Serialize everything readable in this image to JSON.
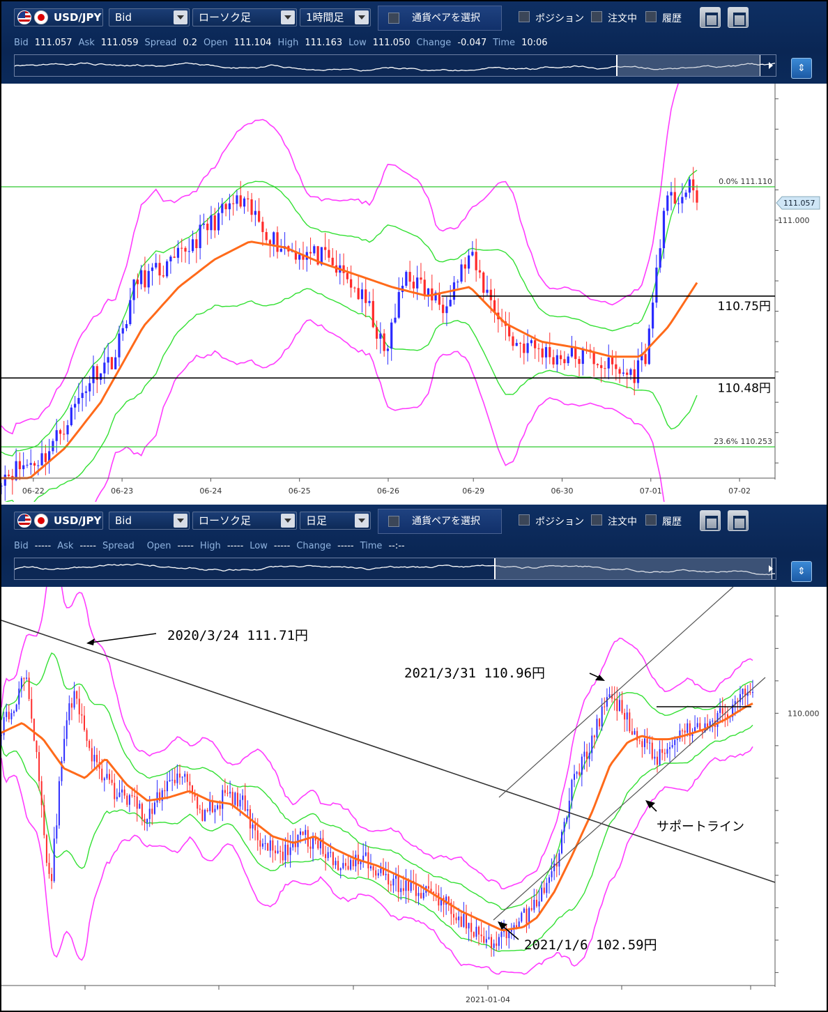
{
  "panels": [
    {
      "toolbar": {
        "symbol": "USD/JPY",
        "price_type": "Bid",
        "chart_style": "ローソク足",
        "timeframe": "1時間足",
        "pair_select": "通貨ペアを選択",
        "checkboxes": [
          "ポジション",
          "注文中",
          "履歴"
        ]
      },
      "quote": [
        {
          "label": "Bid",
          "value": "111.057"
        },
        {
          "label": "Ask",
          "value": "111.059"
        },
        {
          "label": "Spread",
          "value": "0.2"
        },
        {
          "label": "Open",
          "value": "111.104"
        },
        {
          "label": "High",
          "value": "111.163"
        },
        {
          "label": "Low",
          "value": "111.050"
        },
        {
          "label": "Change",
          "value": "-0.047"
        },
        {
          "label": "Time",
          "value": "10:06"
        }
      ],
      "navigator_selection": [
        0.79,
        0.98
      ],
      "nav_button_icon": "zoom-toggle-icon"
    },
    {
      "toolbar": {
        "symbol": "USD/JPY",
        "price_type": "Bid",
        "chart_style": "ローソク足",
        "timeframe": "日足",
        "pair_select": "通貨ペアを選択",
        "checkboxes": [
          "ポジション",
          "注文中",
          "履歴"
        ]
      },
      "quote": [
        {
          "label": "Bid",
          "value": "-----"
        },
        {
          "label": "Ask",
          "value": "-----"
        },
        {
          "label": "Spread",
          "value": ""
        },
        {
          "label": "Open",
          "value": "-----"
        },
        {
          "label": "High",
          "value": "-----"
        },
        {
          "label": "Low",
          "value": "-----"
        },
        {
          "label": "Change",
          "value": "-----"
        },
        {
          "label": "Time",
          "value": "--:--"
        }
      ],
      "navigator_selection": [
        0.63,
        0.995
      ],
      "nav_button_icon": "zoom-toggle-icon"
    }
  ],
  "chart_data": [
    {
      "type": "candlestick",
      "timeframe": "1時間足",
      "x_tick_labels": [
        "06-22",
        "06-23",
        "06-24",
        "06-25",
        "06-26",
        "06-29",
        "06-30",
        "07-01",
        "07-02"
      ],
      "y_tick_labels": [
        "111.000"
      ],
      "ylim": [
        110.15,
        111.45
      ],
      "current_price": "111.057",
      "fib_levels": [
        {
          "label": "0.0%",
          "value": "111.110"
        },
        {
          "label": "23.6%",
          "value": "110.253"
        }
      ],
      "horizontal_lines": [
        {
          "label": "110.75円",
          "value": 110.75
        },
        {
          "label": "110.48円",
          "value": 110.48
        }
      ],
      "indicators": [
        "Moving average (orange)",
        "Bollinger ±1σ (green)",
        "Bollinger ±2σ (magenta)"
      ],
      "close_path": [
        [
          0,
          110.16
        ],
        [
          0.6,
          110.22
        ],
        [
          0.9,
          110.33
        ],
        [
          1.3,
          110.5
        ],
        [
          1.6,
          110.55
        ],
        [
          1.9,
          110.8
        ],
        [
          2.1,
          110.82
        ],
        [
          2.4,
          110.85
        ],
        [
          2.7,
          110.93
        ],
        [
          3.0,
          111.0
        ],
        [
          3.3,
          111.06
        ],
        [
          3.5,
          111.03
        ],
        [
          3.9,
          110.92
        ],
        [
          4.1,
          110.9
        ],
        [
          4.5,
          110.88
        ],
        [
          4.9,
          110.8
        ],
        [
          5.2,
          110.7
        ],
        [
          5.4,
          110.55
        ],
        [
          5.7,
          110.83
        ],
        [
          5.9,
          110.78
        ],
        [
          6.2,
          110.72
        ],
        [
          6.4,
          110.8
        ],
        [
          6.6,
          110.88
        ],
        [
          6.8,
          110.78
        ],
        [
          7.2,
          110.6
        ],
        [
          7.5,
          110.58
        ],
        [
          7.8,
          110.55
        ],
        [
          8.3,
          110.55
        ],
        [
          8.7,
          110.5
        ],
        [
          8.9,
          110.49
        ],
        [
          9.1,
          110.57
        ],
        [
          9.3,
          110.98
        ],
        [
          9.4,
          111.06
        ],
        [
          9.7,
          111.1
        ],
        [
          9.8,
          111.06
        ]
      ],
      "sma_path": [
        [
          0.4,
          110.15
        ],
        [
          0.9,
          110.25
        ],
        [
          1.4,
          110.4
        ],
        [
          2.0,
          110.65
        ],
        [
          2.5,
          110.78
        ],
        [
          3.0,
          110.87
        ],
        [
          3.5,
          110.93
        ],
        [
          4.0,
          110.91
        ],
        [
          4.5,
          110.86
        ],
        [
          5.0,
          110.82
        ],
        [
          5.5,
          110.78
        ],
        [
          6.0,
          110.75
        ],
        [
          6.6,
          110.78
        ],
        [
          7.1,
          110.66
        ],
        [
          7.6,
          110.6
        ],
        [
          8.1,
          110.58
        ],
        [
          8.6,
          110.55
        ],
        [
          9.0,
          110.55
        ],
        [
          9.4,
          110.65
        ],
        [
          9.9,
          110.83
        ]
      ]
    },
    {
      "type": "candlestick",
      "timeframe": "日足",
      "x_tick_labels": [
        "2021-01-04"
      ],
      "y_tick_labels": [
        "110.000"
      ],
      "ylim": [
        101.6,
        113.9
      ],
      "annotations": [
        {
          "text": "2020/3/24  111.71円",
          "date": "2020-03-24",
          "value": 111.71
        },
        {
          "text": "2021/3/31  110.96円",
          "date": "2021-03-31",
          "value": 110.96
        },
        {
          "text": "2021/1/6  102.59円",
          "date": "2021-01-06",
          "value": 102.59
        },
        {
          "text": "サポートライン"
        }
      ],
      "indicators": [
        "Moving average (orange)",
        "Bollinger ±1σ (green)",
        "Bollinger ±2σ (magenta)"
      ],
      "close_path": [
        [
          0,
          109.6
        ],
        [
          0.2,
          110.2
        ],
        [
          0.35,
          111.5
        ],
        [
          0.5,
          108.9
        ],
        [
          0.7,
          104.5
        ],
        [
          0.9,
          109.3
        ],
        [
          1.05,
          110.8
        ],
        [
          1.3,
          108.6
        ],
        [
          1.6,
          107.6
        ],
        [
          1.9,
          107.2
        ],
        [
          2.1,
          106.8
        ],
        [
          2.35,
          107.7
        ],
        [
          2.6,
          108.3
        ],
        [
          2.9,
          106.9
        ],
        [
          3.2,
          107.4
        ],
        [
          3.45,
          107.3
        ],
        [
          3.7,
          106.1
        ],
        [
          4.0,
          105.6
        ],
        [
          4.3,
          106.2
        ],
        [
          4.55,
          106.0
        ],
        [
          4.8,
          105.3
        ],
        [
          5.2,
          105.6
        ],
        [
          5.5,
          104.9
        ],
        [
          5.9,
          104.6
        ],
        [
          6.3,
          104.3
        ],
        [
          6.6,
          103.7
        ],
        [
          6.85,
          103.1
        ],
        [
          7.05,
          102.8
        ],
        [
          7.3,
          103.2
        ],
        [
          7.6,
          103.9
        ],
        [
          7.8,
          104.6
        ],
        [
          8.0,
          105.5
        ],
        [
          8.2,
          107.8
        ],
        [
          8.45,
          109.0
        ],
        [
          8.75,
          110.6
        ],
        [
          8.9,
          110.1
        ],
        [
          9.2,
          109.2
        ],
        [
          9.4,
          108.6
        ],
        [
          9.6,
          109.1
        ],
        [
          9.8,
          109.5
        ],
        [
          10.1,
          109.6
        ],
        [
          10.4,
          110.0
        ],
        [
          10.65,
          110.5
        ],
        [
          10.8,
          110.9
        ]
      ],
      "sma_path": [
        [
          0,
          109.4
        ],
        [
          0.3,
          109.7
        ],
        [
          0.6,
          109.2
        ],
        [
          0.9,
          108.3
        ],
        [
          1.2,
          108.0
        ],
        [
          1.5,
          108.6
        ],
        [
          1.8,
          107.8
        ],
        [
          2.1,
          107.3
        ],
        [
          2.4,
          107.4
        ],
        [
          2.7,
          107.6
        ],
        [
          3.0,
          107.3
        ],
        [
          3.3,
          107.2
        ],
        [
          3.6,
          106.7
        ],
        [
          3.9,
          106.2
        ],
        [
          4.2,
          106.0
        ],
        [
          4.5,
          106.2
        ],
        [
          4.8,
          105.8
        ],
        [
          5.1,
          105.5
        ],
        [
          5.4,
          105.3
        ],
        [
          5.7,
          105.0
        ],
        [
          6.0,
          104.7
        ],
        [
          6.3,
          104.3
        ],
        [
          6.6,
          103.9
        ],
        [
          6.9,
          103.6
        ],
        [
          7.2,
          103.3
        ],
        [
          7.5,
          103.4
        ],
        [
          7.7,
          103.7
        ],
        [
          7.95,
          104.5
        ],
        [
          8.2,
          105.6
        ],
        [
          8.5,
          107.0
        ],
        [
          8.75,
          108.4
        ],
        [
          9.0,
          109.1
        ],
        [
          9.2,
          109.3
        ],
        [
          9.4,
          109.2
        ],
        [
          9.6,
          109.2
        ],
        [
          9.8,
          109.3
        ],
        [
          10.1,
          109.5
        ],
        [
          10.4,
          109.8
        ],
        [
          10.7,
          110.2
        ],
        [
          10.8,
          110.3
        ]
      ]
    }
  ]
}
